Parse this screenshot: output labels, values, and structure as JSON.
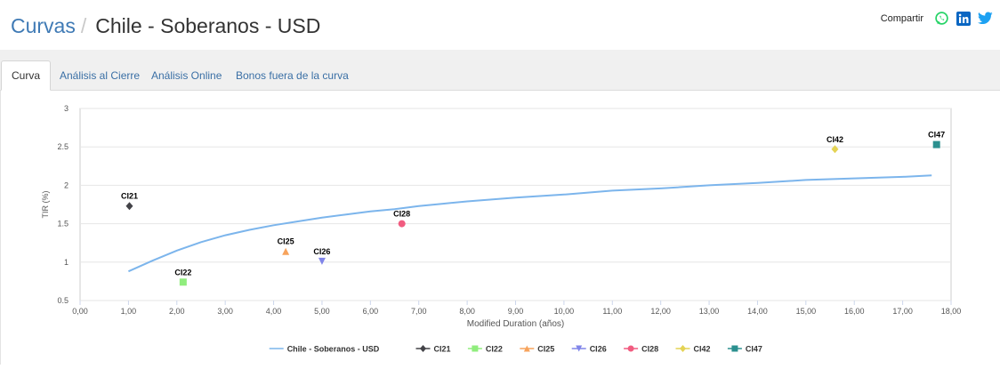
{
  "header": {
    "breadcrumb_parent": "Curvas",
    "breadcrumb_separator": "/",
    "title": "Chile - Soberanos - USD",
    "share_label": "Compartir",
    "share_icons": [
      "whatsapp-icon",
      "linkedin-icon",
      "twitter-icon"
    ]
  },
  "tabs": [
    {
      "label": "Curva",
      "active": true
    },
    {
      "label": "Análisis al Cierre",
      "active": false
    },
    {
      "label": "Análisis Online",
      "active": false
    },
    {
      "label": "Bonos fuera de la curva",
      "active": false
    }
  ],
  "colors": {
    "accent": "#3f7ab5",
    "curve": "#7cb5ec"
  },
  "chart_data": {
    "type": "scatter",
    "xlabel": "Modified Duration (años)",
    "ylabel": "TIR (%)",
    "xlim": [
      0,
      18
    ],
    "ylim": [
      0.5,
      3
    ],
    "x_ticks": [
      "0,00",
      "1,00",
      "2,00",
      "3,00",
      "4,00",
      "5,00",
      "6,00",
      "7,00",
      "8,00",
      "9,00",
      "10,00",
      "11,00",
      "12,00",
      "13,00",
      "14,00",
      "15,00",
      "16,00",
      "17,00",
      "18,00"
    ],
    "y_ticks": [
      "0.5",
      "1",
      "1.5",
      "2",
      "2.5",
      "3"
    ],
    "grid": "horizontal",
    "legend_position": "bottom",
    "curve": {
      "name": "Chile - Soberanos - USD",
      "color": "#7cb5ec",
      "points": [
        [
          1.0,
          0.88
        ],
        [
          1.5,
          1.02
        ],
        [
          2.0,
          1.15
        ],
        [
          2.5,
          1.26
        ],
        [
          3.0,
          1.35
        ],
        [
          3.5,
          1.42
        ],
        [
          4.0,
          1.48
        ],
        [
          4.5,
          1.53
        ],
        [
          5.0,
          1.58
        ],
        [
          5.5,
          1.62
        ],
        [
          6.0,
          1.66
        ],
        [
          6.5,
          1.69
        ],
        [
          7.0,
          1.73
        ],
        [
          7.5,
          1.76
        ],
        [
          8.0,
          1.79
        ],
        [
          9.0,
          1.84
        ],
        [
          10.0,
          1.88
        ],
        [
          11.0,
          1.93
        ],
        [
          12.0,
          1.96
        ],
        [
          13.0,
          2.0
        ],
        [
          14.0,
          2.03
        ],
        [
          15.0,
          2.07
        ],
        [
          16.0,
          2.09
        ],
        [
          17.0,
          2.11
        ],
        [
          17.6,
          2.13
        ]
      ]
    },
    "series": [
      {
        "name": "CI21",
        "x": 1.02,
        "y": 1.73,
        "marker": "diamond",
        "color": "#434348"
      },
      {
        "name": "CI22",
        "x": 2.13,
        "y": 0.74,
        "marker": "square",
        "color": "#90ed7d"
      },
      {
        "name": "CI25",
        "x": 4.25,
        "y": 1.14,
        "marker": "triangle",
        "color": "#f7a35c"
      },
      {
        "name": "CI26",
        "x": 5.0,
        "y": 1.01,
        "marker": "triangle-down",
        "color": "#8085e9"
      },
      {
        "name": "CI28",
        "x": 6.65,
        "y": 1.5,
        "marker": "circle",
        "color": "#f15c80"
      },
      {
        "name": "CI42",
        "x": 15.6,
        "y": 2.47,
        "marker": "diamond",
        "color": "#e4d354"
      },
      {
        "name": "CI47",
        "x": 17.7,
        "y": 2.53,
        "marker": "square",
        "color": "#2b908f"
      }
    ]
  }
}
